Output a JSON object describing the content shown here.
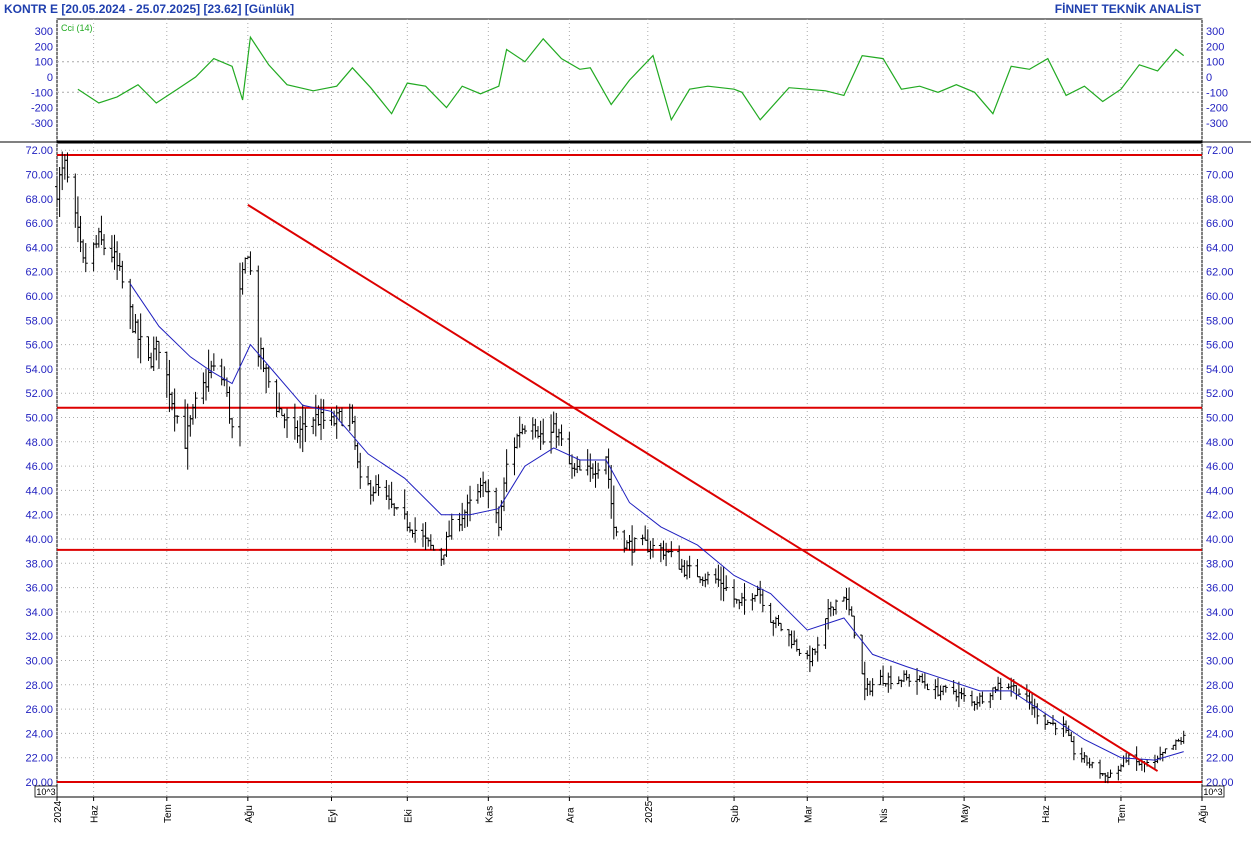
{
  "header": {
    "left": "KONTR E  [20.05.2024 - 25.07.2025]  [23.62]  [Günlük]",
    "right": "FİNNET TEKNİK ANALİST"
  },
  "colors": {
    "price_bar": "#000000",
    "moving_average": "#1f1fbf",
    "horizontal_lines": "#dd0000",
    "trendline": "#dd0000",
    "cci": "#22aa22",
    "axis_text": "#1f1fbf",
    "grid": "#aaaaaa"
  },
  "chart_data": [
    {
      "type": "line",
      "title": "Cci (14)",
      "ylim": [
        -350,
        350
      ],
      "y_ticks": [
        "300",
        "200",
        "100",
        "0",
        "-100",
        "-200",
        "-300"
      ],
      "reference_lines": [
        100,
        -100
      ],
      "x_dates": [
        "2024-05-28",
        "2024-06-05",
        "2024-06-12",
        "2024-06-20",
        "2024-06-27",
        "2024-07-05",
        "2024-07-12",
        "2024-07-19",
        "2024-07-26",
        "2024-07-30",
        "2024-08-02",
        "2024-08-09",
        "2024-08-16",
        "2024-08-26",
        "2024-09-04",
        "2024-09-10",
        "2024-09-17",
        "2024-09-25",
        "2024-10-01",
        "2024-10-08",
        "2024-10-16",
        "2024-10-22",
        "2024-10-29",
        "2024-11-05",
        "2024-11-08",
        "2024-11-15",
        "2024-11-22",
        "2024-11-29",
        "2024-12-06",
        "2024-12-10",
        "2024-12-18",
        "2024-12-25",
        "2025-01-03",
        "2025-01-10",
        "2025-01-17",
        "2025-01-24",
        "2025-02-03",
        "2025-02-06",
        "2025-02-13",
        "2025-02-24",
        "2025-03-03",
        "2025-03-10",
        "2025-03-17",
        "2025-03-24",
        "2025-04-01",
        "2025-04-08",
        "2025-04-15",
        "2025-04-22",
        "2025-04-29",
        "2025-05-06",
        "2025-05-13",
        "2025-05-20",
        "2025-05-27",
        "2025-06-03",
        "2025-06-10",
        "2025-06-17",
        "2025-06-24",
        "2025-07-01",
        "2025-07-08",
        "2025-07-15",
        "2025-07-22",
        "2025-07-25"
      ],
      "values": [
        -80,
        -170,
        -130,
        -50,
        -170,
        -80,
        0,
        120,
        70,
        -150,
        260,
        80,
        -50,
        -90,
        -60,
        60,
        -70,
        -240,
        -40,
        -60,
        -200,
        -60,
        -110,
        -60,
        180,
        100,
        250,
        120,
        50,
        60,
        -180,
        -20,
        140,
        -280,
        -80,
        -60,
        -80,
        -100,
        -280,
        -70,
        -80,
        -90,
        -120,
        140,
        120,
        -80,
        -60,
        -100,
        -50,
        -100,
        -240,
        70,
        50,
        120,
        -120,
        -60,
        -160,
        -80,
        80,
        40,
        180,
        140
      ],
      "series": [
        {
          "name": "Cci (14)"
        }
      ]
    },
    {
      "type": "bar",
      "subtype": "ohlc",
      "ylim": [
        19.4,
        72.6
      ],
      "y_ticks": [
        "72.00",
        "70.00",
        "68.00",
        "66.00",
        "64.00",
        "62.00",
        "60.00",
        "58.00",
        "56.00",
        "54.00",
        "52.00",
        "50.00",
        "48.00",
        "46.00",
        "44.00",
        "42.00",
        "40.00",
        "38.00",
        "36.00",
        "34.00",
        "32.00",
        "30.00",
        "28.00",
        "26.00",
        "24.00",
        "22.00",
        "20.00"
      ],
      "x_ticks": [
        "2024",
        "Haz",
        "Tem",
        "Ağu",
        "Eyl",
        "Eki",
        "Kas",
        "Ara",
        "2025",
        "Şub",
        "Mar",
        "Nis",
        "May",
        "Haz",
        "Tem",
        "Ağu"
      ],
      "x_tick_dates": [
        "2024-05-20",
        "2024-06-03",
        "2024-07-01",
        "2024-08-01",
        "2024-09-02",
        "2024-10-01",
        "2024-11-01",
        "2024-12-02",
        "2025-01-01",
        "2025-02-03",
        "2025-03-03",
        "2025-04-01",
        "2025-05-02",
        "2025-06-02",
        "2025-07-01",
        "2025-08-01"
      ],
      "x_range": [
        "2024-05-20",
        "2025-08-01"
      ],
      "scale_note": "10^3",
      "horizontal_lines": [
        71.6,
        50.8,
        39.1,
        20.0
      ],
      "trendline": [
        {
          "date": "2024-08-01",
          "y": 67.5
        },
        {
          "date": "2025-07-15",
          "y": 20.9
        }
      ],
      "close_keypoints": [
        {
          "date": "2024-05-20",
          "close": 69.0
        },
        {
          "date": "2024-05-23",
          "close": 70.5
        },
        {
          "date": "2024-05-27",
          "close": 66.0
        },
        {
          "date": "2024-05-30",
          "close": 62.5
        },
        {
          "date": "2024-06-05",
          "close": 64.5
        },
        {
          "date": "2024-06-10",
          "close": 63.5
        },
        {
          "date": "2024-06-14",
          "close": 61.0
        },
        {
          "date": "2024-06-19",
          "close": 57.0
        },
        {
          "date": "2024-06-24",
          "close": 54.5
        },
        {
          "date": "2024-06-28",
          "close": 56.0
        },
        {
          "date": "2024-07-03",
          "close": 51.5
        },
        {
          "date": "2024-07-08",
          "close": 48.0
        },
        {
          "date": "2024-07-12",
          "close": 51.0
        },
        {
          "date": "2024-07-18",
          "close": 54.0
        },
        {
          "date": "2024-07-23",
          "close": 53.0
        },
        {
          "date": "2024-07-26",
          "close": 49.0
        },
        {
          "date": "2024-07-29",
          "close": 60.0
        },
        {
          "date": "2024-08-01",
          "close": 64.0
        },
        {
          "date": "2024-08-05",
          "close": 55.5
        },
        {
          "date": "2024-08-12",
          "close": 51.0
        },
        {
          "date": "2024-08-19",
          "close": 48.5
        },
        {
          "date": "2024-08-26",
          "close": 50.0
        },
        {
          "date": "2024-09-02",
          "close": 49.5
        },
        {
          "date": "2024-09-09",
          "close": 50.5
        },
        {
          "date": "2024-09-13",
          "close": 44.5
        },
        {
          "date": "2024-09-20",
          "close": 44.0
        },
        {
          "date": "2024-09-27",
          "close": 42.0
        },
        {
          "date": "2024-10-03",
          "close": 41.0
        },
        {
          "date": "2024-10-09",
          "close": 39.5
        },
        {
          "date": "2024-10-14",
          "close": 38.5
        },
        {
          "date": "2024-10-18",
          "close": 41.0
        },
        {
          "date": "2024-10-24",
          "close": 42.5
        },
        {
          "date": "2024-10-31",
          "close": 44.5
        },
        {
          "date": "2024-11-05",
          "close": 41.0
        },
        {
          "date": "2024-11-08",
          "close": 46.0
        },
        {
          "date": "2024-11-13",
          "close": 49.0
        },
        {
          "date": "2024-11-18",
          "close": 50.0
        },
        {
          "date": "2024-11-22",
          "close": 48.0
        },
        {
          "date": "2024-11-27",
          "close": 49.0
        },
        {
          "date": "2024-12-03",
          "close": 45.5
        },
        {
          "date": "2024-12-10",
          "close": 45.5
        },
        {
          "date": "2024-12-16",
          "close": 47.0
        },
        {
          "date": "2024-12-19",
          "close": 41.0
        },
        {
          "date": "2024-12-24",
          "close": 39.5
        },
        {
          "date": "2024-12-31",
          "close": 39.5
        },
        {
          "date": "2025-01-08",
          "close": 39.0
        },
        {
          "date": "2025-01-15",
          "close": 37.5
        },
        {
          "date": "2025-01-22",
          "close": 37.0
        },
        {
          "date": "2025-01-29",
          "close": 36.5
        },
        {
          "date": "2025-02-05",
          "close": 34.5
        },
        {
          "date": "2025-02-12",
          "close": 36.0
        },
        {
          "date": "2025-02-17",
          "close": 33.5
        },
        {
          "date": "2025-02-24",
          "close": 32.0
        },
        {
          "date": "2025-03-03",
          "close": 30.0
        },
        {
          "date": "2025-03-07",
          "close": 31.0
        },
        {
          "date": "2025-03-12",
          "close": 34.5
        },
        {
          "date": "2025-03-17",
          "close": 35.5
        },
        {
          "date": "2025-03-21",
          "close": 32.5
        },
        {
          "date": "2025-03-25",
          "close": 27.5
        },
        {
          "date": "2025-03-31",
          "close": 28.5
        },
        {
          "date": "2025-04-07",
          "close": 28.5
        },
        {
          "date": "2025-04-14",
          "close": 28.5
        },
        {
          "date": "2025-04-21",
          "close": 27.5
        },
        {
          "date": "2025-04-28",
          "close": 27.5
        },
        {
          "date": "2025-05-05",
          "close": 26.5
        },
        {
          "date": "2025-05-09",
          "close": 27.0
        },
        {
          "date": "2025-05-15",
          "close": 28.0
        },
        {
          "date": "2025-05-20",
          "close": 28.0
        },
        {
          "date": "2025-05-27",
          "close": 26.5
        },
        {
          "date": "2025-06-02",
          "close": 25.0
        },
        {
          "date": "2025-06-09",
          "close": 24.5
        },
        {
          "date": "2025-06-13",
          "close": 22.5
        },
        {
          "date": "2025-06-19",
          "close": 21.5
        },
        {
          "date": "2025-06-25",
          "close": 20.5
        },
        {
          "date": "2025-06-30",
          "close": 21.0
        },
        {
          "date": "2025-07-03",
          "close": 22.0
        },
        {
          "date": "2025-07-08",
          "close": 21.5
        },
        {
          "date": "2025-07-14",
          "close": 21.5
        },
        {
          "date": "2025-07-18",
          "close": 22.5
        },
        {
          "date": "2025-07-25",
          "close": 23.62
        }
      ],
      "moving_average": [
        {
          "date": "2024-06-17",
          "value": 61.0
        },
        {
          "date": "2024-06-28",
          "value": 57.5
        },
        {
          "date": "2024-07-10",
          "value": 55.0
        },
        {
          "date": "2024-07-18",
          "value": 53.8
        },
        {
          "date": "2024-07-26",
          "value": 52.8
        },
        {
          "date": "2024-08-02",
          "value": 56.0
        },
        {
          "date": "2024-08-12",
          "value": 53.5
        },
        {
          "date": "2024-08-22",
          "value": 51.0
        },
        {
          "date": "2024-09-02",
          "value": 50.5
        },
        {
          "date": "2024-09-16",
          "value": 47.0
        },
        {
          "date": "2024-09-30",
          "value": 45.0
        },
        {
          "date": "2024-10-14",
          "value": 42.0
        },
        {
          "date": "2024-10-25",
          "value": 42.0
        },
        {
          "date": "2024-11-05",
          "value": 42.5
        },
        {
          "date": "2024-11-15",
          "value": 46.0
        },
        {
          "date": "2024-11-26",
          "value": 47.5
        },
        {
          "date": "2024-12-06",
          "value": 46.5
        },
        {
          "date": "2024-12-16",
          "value": 46.5
        },
        {
          "date": "2024-12-25",
          "value": 43.0
        },
        {
          "date": "2025-01-06",
          "value": 41.0
        },
        {
          "date": "2025-01-20",
          "value": 39.5
        },
        {
          "date": "2025-02-03",
          "value": 37.0
        },
        {
          "date": "2025-02-17",
          "value": 35.5
        },
        {
          "date": "2025-03-03",
          "value": 32.5
        },
        {
          "date": "2025-03-17",
          "value": 33.5
        },
        {
          "date": "2025-03-28",
          "value": 30.5
        },
        {
          "date": "2025-04-10",
          "value": 29.5
        },
        {
          "date": "2025-04-24",
          "value": 28.5
        },
        {
          "date": "2025-05-08",
          "value": 27.5
        },
        {
          "date": "2025-05-20",
          "value": 27.5
        },
        {
          "date": "2025-06-03",
          "value": 25.5
        },
        {
          "date": "2025-06-17",
          "value": 23.5
        },
        {
          "date": "2025-07-01",
          "value": 22.0
        },
        {
          "date": "2025-07-14",
          "value": 21.8
        },
        {
          "date": "2025-07-25",
          "value": 22.5
        }
      ]
    }
  ]
}
